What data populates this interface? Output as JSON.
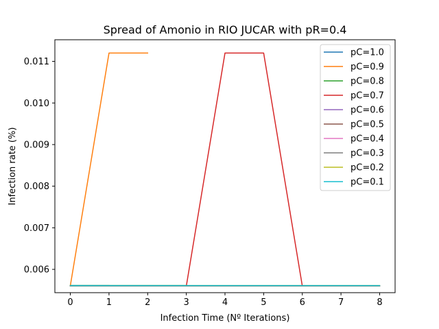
{
  "chart_data": {
    "type": "line",
    "title": "Spread of Amonio in RIO JUCAR with pR=0.4",
    "xlabel": "Infection Time (Nº Iterations)",
    "ylabel": "Infection rate (%)",
    "xlim": [
      -0.4,
      8.4
    ],
    "ylim": [
      0.00544,
      0.01152
    ],
    "xticks": [
      0,
      1,
      2,
      3,
      4,
      5,
      6,
      7,
      8
    ],
    "xtick_labels": [
      "0",
      "1",
      "2",
      "3",
      "4",
      "5",
      "6",
      "7",
      "8"
    ],
    "yticks": [
      0.006,
      0.007,
      0.008,
      0.009,
      0.01,
      0.011
    ],
    "ytick_labels": [
      "0.006",
      "0.007",
      "0.008",
      "0.009",
      "0.010",
      "0.011"
    ],
    "grid": false,
    "legend_position": "top-right",
    "series": [
      {
        "name": "pC=1.0",
        "color": "#1f77b4",
        "x": [
          0,
          1
        ],
        "y": [
          0.00561,
          0.00561
        ]
      },
      {
        "name": "pC=0.9",
        "color": "#ff7f0e",
        "x": [
          0,
          1,
          2
        ],
        "y": [
          0.00561,
          0.0112,
          0.0112
        ]
      },
      {
        "name": "pC=0.8",
        "color": "#2ca02c",
        "x": [
          0,
          1,
          2,
          3
        ],
        "y": [
          0.00561,
          0.00561,
          0.00561,
          0.00561
        ]
      },
      {
        "name": "pC=0.7",
        "color": "#d62728",
        "x": [
          0,
          1,
          2,
          3,
          4,
          5,
          6,
          7,
          8
        ],
        "y": [
          0.0056,
          0.0056,
          0.0056,
          0.0056,
          0.0112,
          0.0112,
          0.0056,
          0.0056,
          0.0056
        ]
      },
      {
        "name": "pC=0.6",
        "color": "#9467bd",
        "x": [
          0,
          1,
          2,
          3,
          4,
          5,
          6,
          7,
          8
        ],
        "y": [
          0.0056,
          0.0056,
          0.0056,
          0.0056,
          0.0056,
          0.0056,
          0.0056,
          0.0056,
          0.0056
        ]
      },
      {
        "name": "pC=0.5",
        "color": "#8c564b",
        "x": [
          0,
          1,
          2,
          3,
          4,
          5,
          6,
          7,
          8
        ],
        "y": [
          0.0056,
          0.0056,
          0.0056,
          0.0056,
          0.0056,
          0.0056,
          0.0056,
          0.0056,
          0.0056
        ]
      },
      {
        "name": "pC=0.4",
        "color": "#e377c2",
        "x": [
          0,
          1,
          2,
          3,
          4,
          5,
          6,
          7,
          8
        ],
        "y": [
          0.0056,
          0.0056,
          0.0056,
          0.0056,
          0.0056,
          0.0056,
          0.0056,
          0.0056,
          0.0056
        ]
      },
      {
        "name": "pC=0.3",
        "color": "#7f7f7f",
        "x": [
          0,
          1,
          2,
          3,
          4,
          5,
          6,
          7,
          8
        ],
        "y": [
          0.0056,
          0.0056,
          0.0056,
          0.0056,
          0.0056,
          0.0056,
          0.0056,
          0.0056,
          0.0056
        ]
      },
      {
        "name": "pC=0.2",
        "color": "#bcbd22",
        "x": [
          0,
          1,
          2,
          3,
          4,
          5,
          6,
          7,
          8
        ],
        "y": [
          0.00561,
          0.00561,
          0.00561,
          0.00561,
          0.00561,
          0.00561,
          0.00561,
          0.00561,
          0.00561
        ]
      },
      {
        "name": "pC=0.1",
        "color": "#17becf",
        "x": [
          0,
          1,
          2,
          3,
          4,
          5,
          6,
          7,
          8
        ],
        "y": [
          0.00561,
          0.00561,
          0.00561,
          0.00561,
          0.00561,
          0.00561,
          0.00561,
          0.00561,
          0.00561
        ]
      }
    ]
  }
}
